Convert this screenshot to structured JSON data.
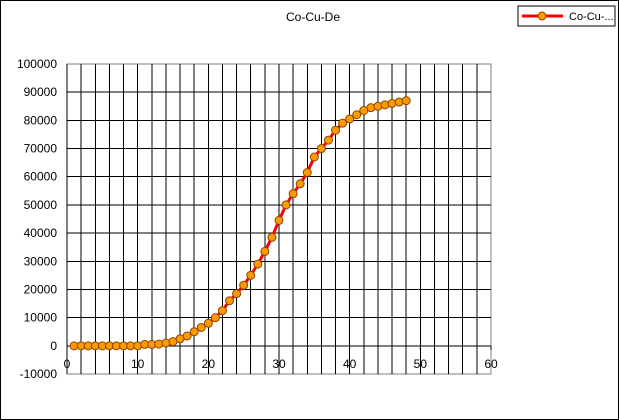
{
  "chart_data": {
    "type": "line",
    "title": "Co-Cu-De",
    "xlabel": "",
    "ylabel": "",
    "xlim": [
      0,
      60
    ],
    "ylim": [
      -10000,
      100000
    ],
    "x_ticks": [
      0,
      10,
      20,
      30,
      40,
      50,
      60
    ],
    "y_ticks": [
      -10000,
      0,
      10000,
      20000,
      30000,
      40000,
      50000,
      60000,
      70000,
      80000,
      90000,
      100000
    ],
    "x_minor_step": 2,
    "grid": true,
    "legend": {
      "position": "top-right",
      "label": "Co-Cu-..."
    },
    "series": [
      {
        "name": "Co-Cu-De",
        "color": "#ff0000",
        "marker_fill": "#ff9900",
        "marker_edge": "#8b4500",
        "x": [
          1,
          2,
          3,
          4,
          5,
          6,
          7,
          8,
          9,
          10,
          11,
          12,
          13,
          14,
          15,
          16,
          17,
          18,
          19,
          20,
          21,
          22,
          23,
          24,
          25,
          26,
          27,
          28,
          29,
          30,
          31,
          32,
          33,
          34,
          35,
          36,
          37,
          38,
          39,
          40,
          41,
          42,
          43,
          44,
          45,
          46,
          47,
          48
        ],
        "y": [
          0,
          0,
          0,
          0,
          0,
          0,
          0,
          0,
          0,
          0,
          500,
          500,
          600,
          1000,
          1500,
          2500,
          3500,
          5000,
          6500,
          8000,
          10000,
          12500,
          16000,
          18500,
          21500,
          25000,
          29000,
          33500,
          38500,
          44500,
          50000,
          54000,
          57500,
          61500,
          67000,
          70000,
          73000,
          76500,
          79000,
          80500,
          82000,
          83500,
          84500,
          85000,
          85500,
          86000,
          86500,
          87000
        ]
      }
    ]
  }
}
